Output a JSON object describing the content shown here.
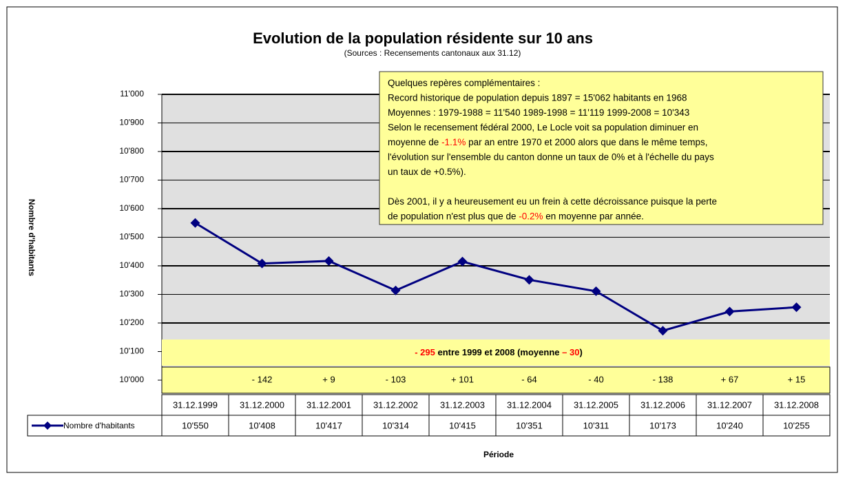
{
  "chart_data": {
    "type": "line",
    "title": "Evolution de la population résidente sur 10 ans",
    "subtitle": "(Sources : Recensements cantonaux aux 31.12)",
    "y_label": "Nombre d'habitants",
    "x_label": "Période",
    "categories": [
      "31.12.1999",
      "31.12.2000",
      "31.12.2001",
      "31.12.2002",
      "31.12.2003",
      "31.12.2004",
      "31.12.2005",
      "31.12.2006",
      "31.12.2007",
      "31.12.2008"
    ],
    "series": [
      {
        "name": "Nombre d'habitants",
        "color": "#000080",
        "values": [
          10550,
          10408,
          10417,
          10314,
          10415,
          10351,
          10311,
          10173,
          10240,
          10255
        ],
        "value_labels": [
          "10'550",
          "10'408",
          "10'417",
          "10'314",
          "10'415",
          "10'351",
          "10'311",
          "10'173",
          "10'240",
          "10'255"
        ]
      }
    ],
    "ylim": [
      10000,
      11000
    ],
    "yticks": [
      {
        "value": 10000,
        "label": "10'000"
      },
      {
        "value": 10100,
        "label": "10'100"
      },
      {
        "value": 10200,
        "label": "10'200"
      },
      {
        "value": 10300,
        "label": "10'300"
      },
      {
        "value": 10400,
        "label": "10'400"
      },
      {
        "value": 10500,
        "label": "10'500"
      },
      {
        "value": 10600,
        "label": "10'600"
      },
      {
        "value": 10700,
        "label": "10'700"
      },
      {
        "value": 10800,
        "label": "10'800"
      },
      {
        "value": 10900,
        "label": "10'900"
      },
      {
        "value": 11000,
        "label": "11'000"
      }
    ],
    "grid": true,
    "highlight_color": "#ff0000",
    "differences": [
      null,
      "- 142",
      "+ 9",
      "- 103",
      "+ 101",
      "- 64",
      "- 40",
      "- 138",
      "+ 67",
      "+ 15"
    ],
    "summary": [
      {
        "text": "- 295",
        "highlight": true
      },
      " entre 1999 et 2008 (moyenne ",
      {
        "text": "– 30",
        "highlight": true
      },
      ")"
    ],
    "note": [
      [
        [
          "Quelques repères complémentaires :"
        ],
        [
          "Record historique de population depuis 1897 = 15'062 habitants en 1968"
        ],
        [
          "Moyennes : 1979-1988  = 11'540    1989-1998 = 11'119      1999-2008  = 10'343"
        ],
        [
          "Selon le recensement  fédéral 2000, Le Locle voit sa population diminuer en"
        ],
        [
          "moyenne de ",
          {
            "text": "-1.1%",
            "highlight": true
          },
          " par an entre 1970 et 2000 alors que dans le même temps,"
        ],
        [
          "l'évolution sur l'ensemble du canton donne un taux de 0% et à l'échelle du pays"
        ],
        [
          "un taux de +0.5%)."
        ]
      ],
      [
        [
          "Dès 2001, il y a heureusement  eu un frein à cette décroissance puisque la perte"
        ],
        [
          "de population n'est plus que de ",
          {
            "text": "-0.2%",
            "highlight": true
          },
          " en moyenne par année."
        ]
      ]
    ]
  }
}
